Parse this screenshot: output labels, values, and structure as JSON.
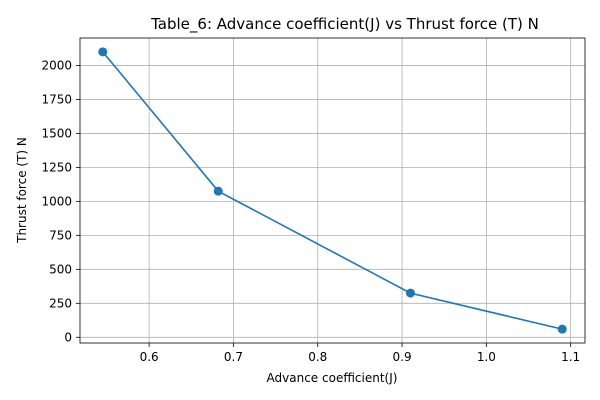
{
  "chart_data": {
    "type": "line",
    "title": "Table_6: Advance  coefficient(J) vs Thrust  force (T)  N",
    "xlabel": "Advance  coefficient(J)",
    "ylabel": "Thrust  force (T)  N",
    "x": [
      0.545,
      0.682,
      0.91,
      1.09
    ],
    "series": [
      {
        "values": [
          2100,
          1075,
          325,
          60
        ]
      }
    ],
    "xlim": [
      0.518,
      1.117
    ],
    "ylim": [
      -42,
      2202
    ],
    "xticks": [
      0.6,
      0.7,
      0.8,
      0.9,
      1.0,
      1.1
    ],
    "xtick_labels": [
      "0.6",
      "0.7",
      "0.8",
      "0.9",
      "1.0",
      "1.1"
    ],
    "yticks": [
      0,
      250,
      500,
      750,
      1000,
      1250,
      1500,
      1750,
      2000
    ],
    "ytick_labels": [
      "0",
      "250",
      "500",
      "750",
      "1000",
      "1250",
      "1500",
      "1750",
      "2000"
    ],
    "grid": true,
    "line_color": "#1f77b4",
    "marker": "circle"
  }
}
